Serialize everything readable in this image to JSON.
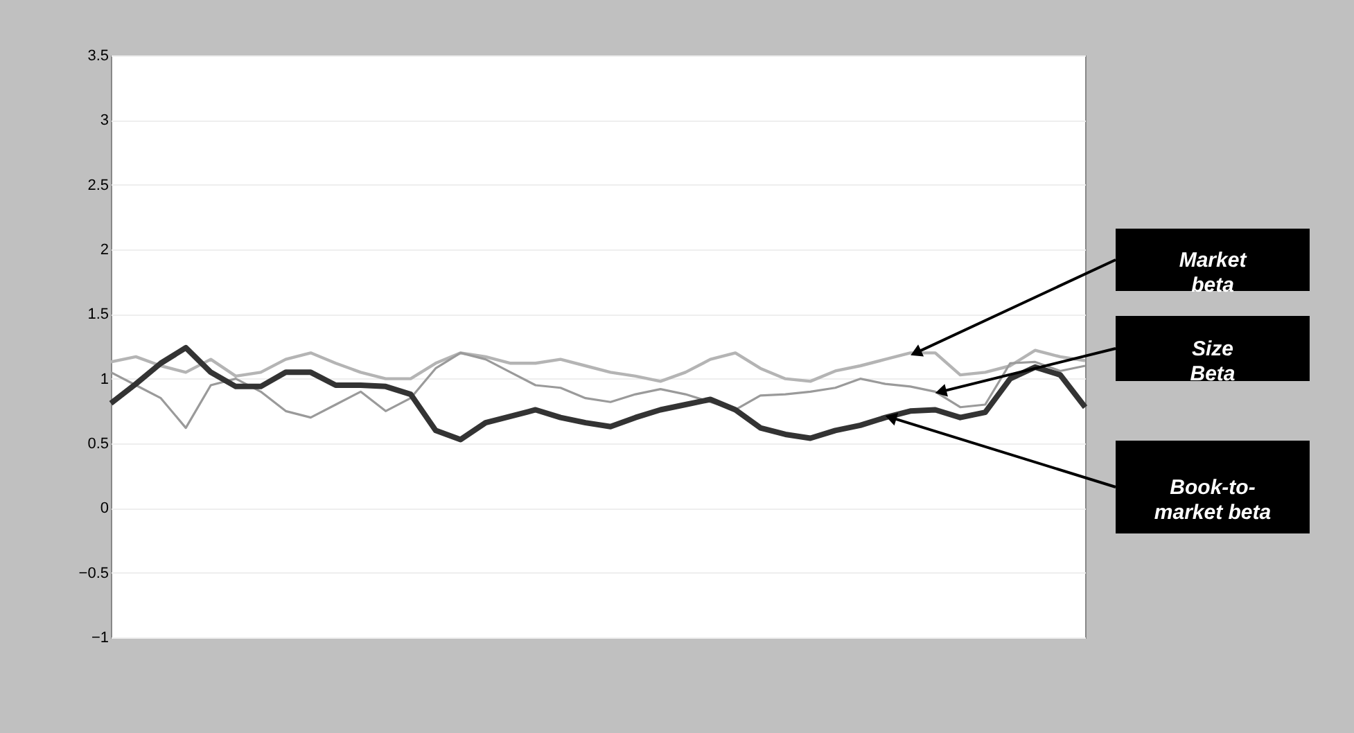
{
  "chart_data": {
    "type": "line",
    "categories": [
      null,
      null,
      null,
      null,
      null,
      null,
      null,
      null,
      null,
      null,
      null,
      null,
      null,
      null,
      null,
      null,
      null,
      null,
      null,
      null,
      null,
      null,
      null,
      null,
      null,
      null,
      null,
      null,
      null,
      null,
      null,
      null,
      null,
      null,
      null,
      null,
      null,
      null,
      null,
      null
    ],
    "series": [
      {
        "name": "Market beta",
        "color": "#b4b4b4",
        "values": [
          1.13,
          1.17,
          1.1,
          1.05,
          1.15,
          1.02,
          1.05,
          1.15,
          1.2,
          1.12,
          1.05,
          1.0,
          1.0,
          1.12,
          1.2,
          1.17,
          1.12,
          1.12,
          1.15,
          1.1,
          1.05,
          1.02,
          0.98,
          1.05,
          1.15,
          1.2,
          1.08,
          1.0,
          0.98,
          1.06,
          1.1,
          1.15,
          1.2,
          1.2,
          1.03,
          1.05,
          1.1,
          1.22,
          1.17,
          1.14
        ]
      },
      {
        "name": "Size Beta",
        "color": "#9a9a9a",
        "values": [
          1.05,
          0.95,
          0.85,
          0.62,
          0.95,
          1.0,
          0.9,
          0.75,
          0.7,
          0.8,
          0.9,
          0.75,
          0.85,
          1.08,
          1.2,
          1.15,
          1.05,
          0.95,
          0.93,
          0.85,
          0.82,
          0.88,
          0.92,
          0.88,
          0.82,
          0.76,
          0.87,
          0.88,
          0.9,
          0.93,
          1.0,
          0.96,
          0.94,
          0.9,
          0.78,
          0.8,
          1.12,
          1.13,
          1.06,
          1.1
        ]
      },
      {
        "name": "Book-to-market beta",
        "color": "#333333",
        "values": [
          0.81,
          0.96,
          1.12,
          1.24,
          1.05,
          0.94,
          0.94,
          1.05,
          1.05,
          0.95,
          0.95,
          0.94,
          0.88,
          0.6,
          0.53,
          0.66,
          0.71,
          0.76,
          0.7,
          0.66,
          0.63,
          0.7,
          0.76,
          0.8,
          0.84,
          0.76,
          0.62,
          0.57,
          0.54,
          0.6,
          0.64,
          0.7,
          0.75,
          0.76,
          0.7,
          0.74,
          1.0,
          1.09,
          1.03,
          0.78
        ]
      }
    ],
    "ylim": [
      -1,
      3.5
    ],
    "yticks": [
      -1,
      -0.5,
      0,
      0.5,
      1,
      1.5,
      2,
      2.5,
      3,
      3.5
    ],
    "grid": "y",
    "tick_labels": "y",
    "line_style": "solid",
    "marker": "none"
  }
}
